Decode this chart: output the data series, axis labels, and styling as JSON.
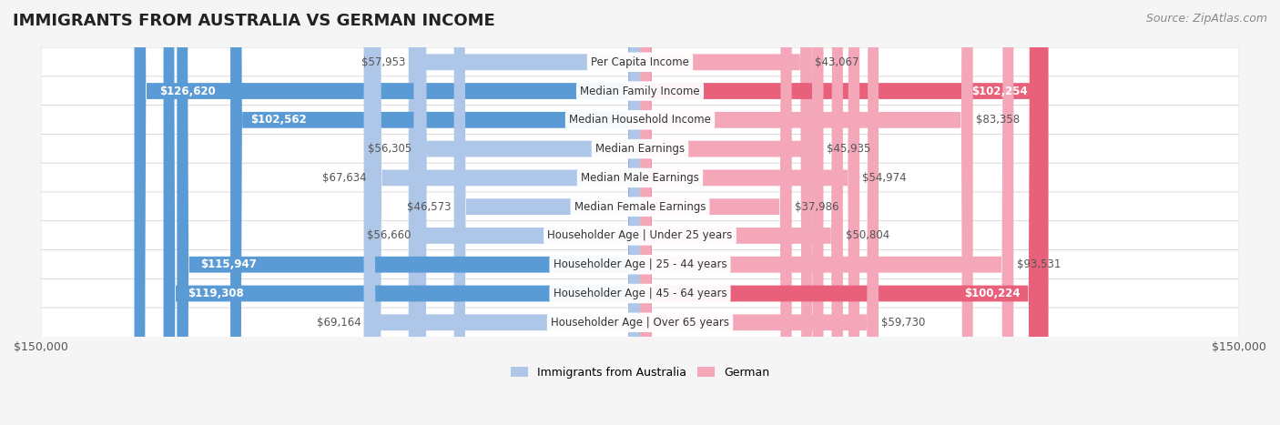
{
  "title": "IMMIGRANTS FROM AUSTRALIA VS GERMAN INCOME",
  "source": "Source: ZipAtlas.com",
  "categories": [
    "Per Capita Income",
    "Median Family Income",
    "Median Household Income",
    "Median Earnings",
    "Median Male Earnings",
    "Median Female Earnings",
    "Householder Age | Under 25 years",
    "Householder Age | 25 - 44 years",
    "Householder Age | 45 - 64 years",
    "Householder Age | Over 65 years"
  ],
  "australia_values": [
    57953,
    126620,
    102562,
    56305,
    67634,
    46573,
    56660,
    115947,
    119308,
    69164
  ],
  "german_values": [
    43067,
    102254,
    83358,
    45935,
    54974,
    37986,
    50804,
    93531,
    100224,
    59730
  ],
  "australia_labels": [
    "$57,953",
    "$126,620",
    "$102,562",
    "$56,305",
    "$67,634",
    "$46,573",
    "$56,660",
    "$115,947",
    "$119,308",
    "$69,164"
  ],
  "german_labels": [
    "$43,067",
    "$102,254",
    "$83,358",
    "$45,935",
    "$54,974",
    "$37,986",
    "$50,804",
    "$93,531",
    "$100,224",
    "$59,730"
  ],
  "australia_color_light": "#aec6e8",
  "australia_color_dark": "#5b9bd5",
  "german_color_light": "#f4a7b9",
  "german_color_dark": "#e8607a",
  "max_value": 150000,
  "xlabel_left": "$150,000",
  "xlabel_right": "$150,000",
  "legend_australia": "Immigrants from Australia",
  "legend_german": "German",
  "background_color": "#f5f5f5",
  "row_bg_color": "#ffffff",
  "title_fontsize": 13,
  "source_fontsize": 9,
  "bar_height": 0.55,
  "label_fontsize": 8.5
}
